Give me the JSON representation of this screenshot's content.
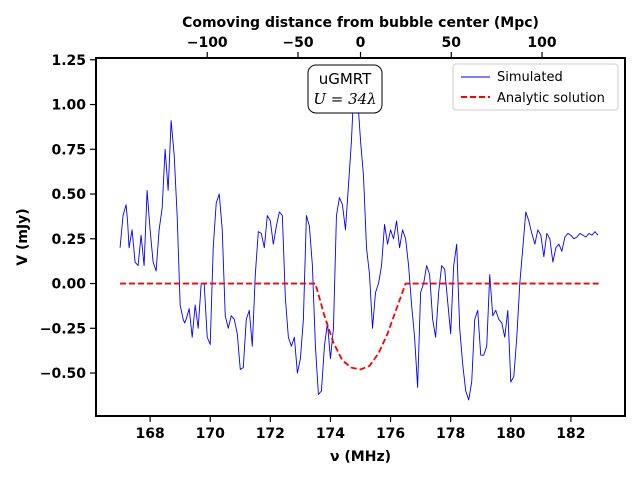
{
  "chart_data": {
    "type": "line",
    "xlabel": "ν (MHz)",
    "ylabel": "V (mJy)",
    "top_xlabel": "Comoving distance from bubble center (Mpc)",
    "xlim": [
      166.2,
      183.8
    ],
    "ylim": [
      -0.74,
      1.26
    ],
    "xticks": [
      168,
      170,
      172,
      174,
      176,
      178,
      180,
      182
    ],
    "xtick_labels": [
      "168",
      "170",
      "172",
      "174",
      "176",
      "178",
      "180",
      "182"
    ],
    "yticks": [
      -0.5,
      -0.25,
      0.0,
      0.25,
      0.5,
      0.75,
      1.0,
      1.25
    ],
    "ytick_labels": [
      "−0.50",
      "−0.25",
      "0.00",
      "0.25",
      "0.50",
      "0.75",
      "1.00",
      "1.25"
    ],
    "top_xticks_freq": [
      169.9,
      172.92,
      175.0,
      178.02,
      181.04
    ],
    "top_xtick_labels": [
      "−100",
      "−50",
      "0",
      "50",
      "100"
    ],
    "annotation": {
      "line1": "uGMRT",
      "line2": "U = 34λ"
    },
    "legend": {
      "position": "upper right",
      "entries": [
        "Simulated",
        "Analytic solution"
      ]
    },
    "series": [
      {
        "name": "Simulated",
        "color": "#0000ff",
        "style": "solid",
        "x": [
          167.0,
          167.1,
          167.2,
          167.25,
          167.3,
          167.4,
          167.5,
          167.6,
          167.7,
          167.8,
          167.9,
          168.0,
          168.1,
          168.2,
          168.3,
          168.4,
          168.5,
          168.6,
          168.7,
          168.8,
          168.9,
          169.0,
          169.1,
          169.15,
          169.2,
          169.3,
          169.4,
          169.5,
          169.6,
          169.7,
          169.8,
          169.9,
          170.0,
          170.1,
          170.2,
          170.3,
          170.4,
          170.5,
          170.6,
          170.7,
          170.8,
          170.9,
          171.0,
          171.1,
          171.2,
          171.3,
          171.4,
          171.5,
          171.6,
          171.7,
          171.8,
          171.9,
          172.0,
          172.1,
          172.2,
          172.3,
          172.4,
          172.5,
          172.6,
          172.7,
          172.8,
          172.9,
          173.0,
          173.1,
          173.2,
          173.3,
          173.4,
          173.5,
          173.6,
          173.7,
          173.8,
          173.9,
          174.0,
          174.1,
          174.2,
          174.3,
          174.4,
          174.5,
          174.6,
          174.7,
          174.8,
          174.9,
          175.0,
          175.1,
          175.2,
          175.3,
          175.4,
          175.5,
          175.6,
          175.7,
          175.8,
          175.9,
          176.0,
          176.1,
          176.2,
          176.3,
          176.4,
          176.5,
          176.6,
          176.7,
          176.8,
          176.9,
          177.0,
          177.1,
          177.2,
          177.3,
          177.4,
          177.5,
          177.6,
          177.7,
          177.8,
          177.9,
          178.0,
          178.1,
          178.2,
          178.3,
          178.4,
          178.5,
          178.6,
          178.7,
          178.8,
          178.9,
          179.0,
          179.1,
          179.2,
          179.3,
          179.4,
          179.5,
          179.6,
          179.7,
          179.8,
          179.9,
          180.0,
          180.1,
          180.2,
          180.3,
          180.4,
          180.5,
          180.6,
          180.7,
          180.8,
          180.9,
          181.0,
          181.1,
          181.2,
          181.3,
          181.4,
          181.5,
          181.6,
          181.7,
          181.8,
          181.9,
          182.0,
          182.1,
          182.2,
          182.3,
          182.4,
          182.5,
          182.6,
          182.7,
          182.8,
          182.9
        ],
        "y": [
          0.2,
          0.38,
          0.44,
          0.35,
          0.2,
          0.3,
          0.12,
          0.1,
          0.27,
          0.1,
          0.52,
          0.3,
          0.12,
          0.07,
          0.3,
          0.42,
          0.75,
          0.52,
          0.91,
          0.72,
          0.38,
          -0.12,
          -0.2,
          -0.22,
          -0.2,
          -0.14,
          -0.3,
          -0.12,
          -0.25,
          0.0,
          0.0,
          -0.3,
          -0.34,
          0.2,
          0.45,
          0.5,
          0.3,
          -0.18,
          -0.25,
          -0.18,
          -0.2,
          -0.28,
          -0.48,
          -0.47,
          -0.2,
          -0.15,
          -0.35,
          0.05,
          0.29,
          0.28,
          0.2,
          0.38,
          0.35,
          0.22,
          0.32,
          0.4,
          0.38,
          -0.08,
          -0.3,
          -0.35,
          -0.3,
          -0.5,
          -0.42,
          -0.2,
          0.38,
          0.32,
          0.1,
          -0.35,
          -0.62,
          -0.6,
          -0.35,
          -0.22,
          -0.42,
          -0.25,
          0.38,
          0.48,
          0.44,
          0.3,
          0.55,
          0.8,
          1.17,
          1.05,
          0.8,
          0.6,
          0.2,
          0.05,
          -0.25,
          -0.05,
          0.0,
          0.1,
          0.33,
          0.22,
          0.3,
          0.25,
          0.35,
          0.2,
          0.3,
          0.25,
          0.1,
          -0.12,
          -0.3,
          -0.58,
          -0.05,
          0.0,
          0.1,
          0.05,
          -0.2,
          -0.3,
          -0.05,
          0.1,
          0.08,
          -0.1,
          -0.28,
          0.1,
          0.22,
          -0.25,
          -0.45,
          -0.6,
          -0.65,
          -0.55,
          -0.2,
          -0.15,
          -0.4,
          -0.4,
          -0.35,
          0.05,
          -0.18,
          -0.15,
          -0.2,
          -0.22,
          -0.3,
          -0.15,
          -0.55,
          -0.52,
          -0.3,
          0.0,
          0.2,
          0.4,
          0.35,
          0.28,
          0.22,
          0.3,
          0.27,
          0.15,
          0.28,
          0.25,
          0.12,
          0.2,
          0.22,
          0.18,
          0.26,
          0.28,
          0.27,
          0.25,
          0.26,
          0.28,
          0.27,
          0.26,
          0.28,
          0.27,
          0.29,
          0.27
        ]
      },
      {
        "name": "Analytic solution",
        "color": "#ff0000",
        "style": "dashed",
        "x": [
          167.0,
          173.5,
          173.8,
          174.1,
          174.4,
          174.7,
          175.0,
          175.3,
          175.6,
          175.9,
          176.2,
          176.5,
          183.0
        ],
        "y": [
          0.0,
          0.0,
          -0.18,
          -0.33,
          -0.43,
          -0.47,
          -0.48,
          -0.46,
          -0.39,
          -0.28,
          -0.14,
          0.0,
          0.0
        ]
      }
    ]
  }
}
